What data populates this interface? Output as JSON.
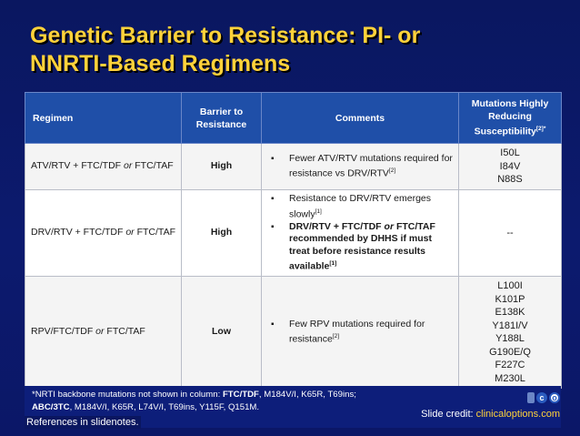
{
  "title_line1": "Genetic Barrier to Resistance: PI- or",
  "title_line2": "NNRTI-Based Regimens",
  "table": {
    "headers": {
      "regimen": "Regimen",
      "barrier": "Barrier to Resistance",
      "comments": "Comments",
      "mutations": "Mutations Highly Reducing Susceptibility",
      "mutations_sup": "[2]*"
    },
    "rows": [
      {
        "regimen_a": "ATV/RTV + FTC/TDF ",
        "regimen_or": "or",
        "regimen_b": " FTC/TAF",
        "barrier": "High",
        "c1": "Fewer ATV/RTV mutations required for resistance vs DRV/RTV",
        "c1_sup": "[2]",
        "mutations": [
          "I50L",
          "I84V",
          "N88S"
        ]
      },
      {
        "regimen_a": "DRV/RTV + FTC/TDF ",
        "regimen_or": "or",
        "regimen_b": " FTC/TAF",
        "barrier": "High",
        "c1": "Resistance to DRV/RTV emerges slowly",
        "c1_sup": "[1]",
        "c2a": "DRV/RTV + FTC/TDF ",
        "c2_or": "or",
        "c2b": " FTC/TAF recommended by DHHS if must treat before resistance results available",
        "c2_sup": "[1]",
        "mutations": [
          "--"
        ]
      },
      {
        "regimen_a": "RPV/FTC/TDF ",
        "regimen_or": "or",
        "regimen_b": " FTC/TAF",
        "barrier": "Low",
        "c1": "Few RPV mutations required for resistance",
        "c1_sup": "[2]",
        "mutations": [
          "L100I",
          "K101P",
          "E138K",
          "Y181I/V",
          "Y188L",
          "G190E/Q",
          "F227C",
          "M230L"
        ]
      }
    ]
  },
  "footnote": {
    "line1_prefix": "*NRTI backbone mutations not shown in column: ",
    "line1_bold": "FTC/TDF",
    "line1_rest": ", M184V/I, K65R, T69ins;",
    "line2_bold": "ABC/3TC",
    "line2_rest": ", M184V/I, K65R, L74V/I, T69ins, Y115F, Q151M."
  },
  "references": "References in slidenotes.",
  "credit": {
    "prefix": "Slide credit: ",
    "link": "clinicaloptions.com"
  },
  "logo": {
    "letters": [
      "",
      "c",
      "o"
    ]
  },
  "colors": {
    "background": "#0c1a6e",
    "title": "#ffd23a",
    "header_bg": "#1f4fa8"
  }
}
